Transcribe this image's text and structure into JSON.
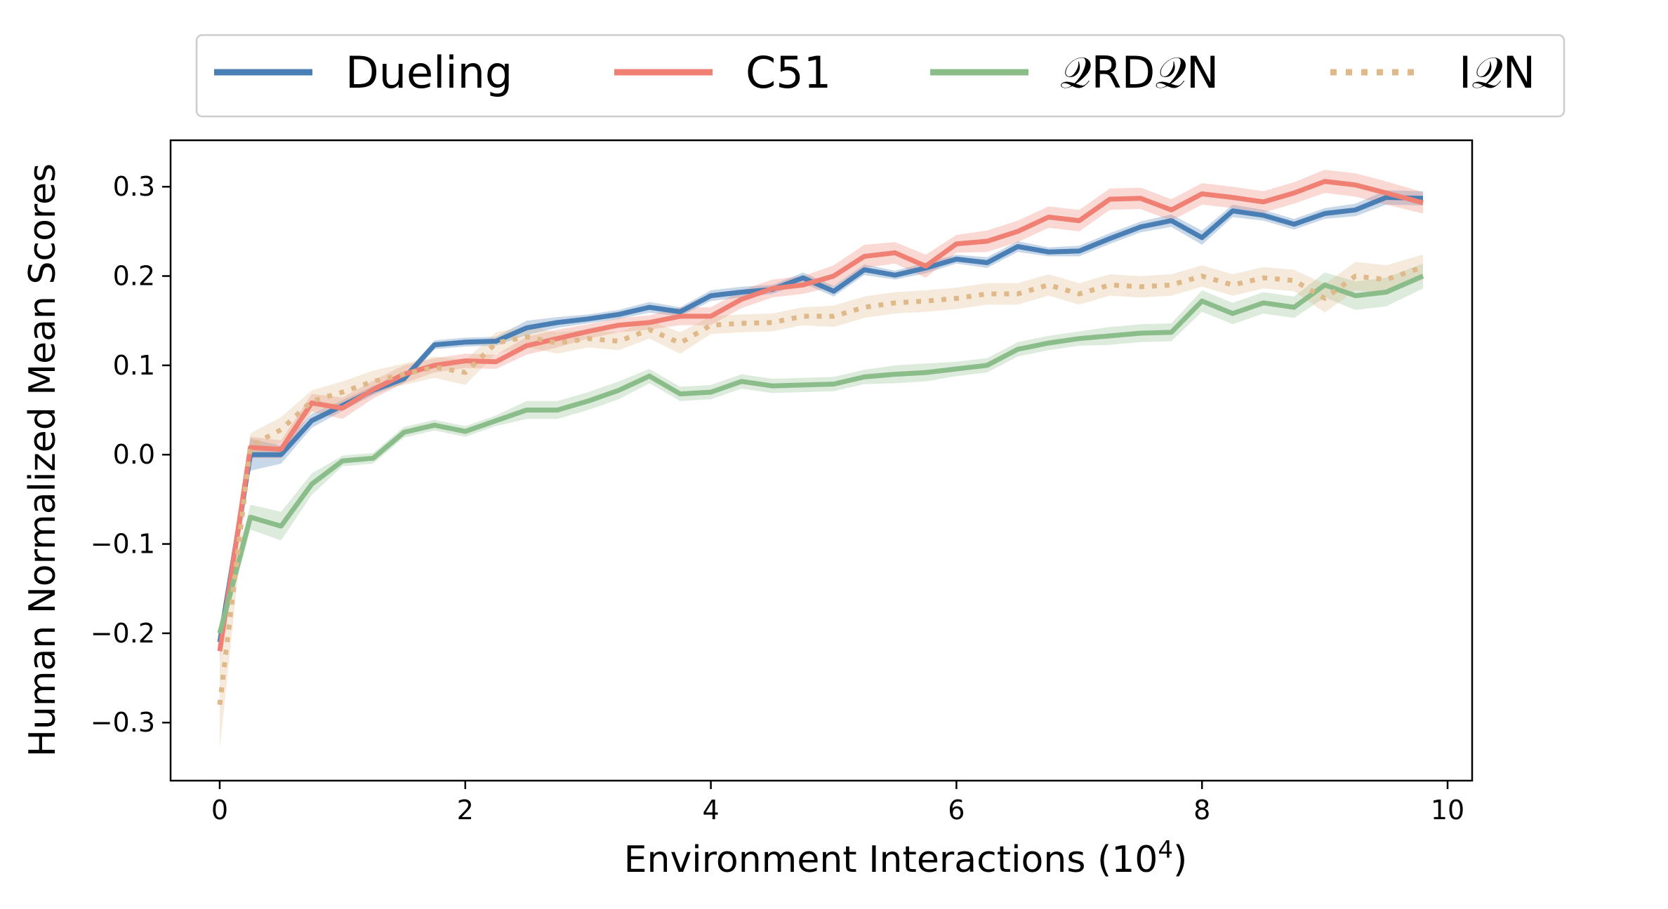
{
  "chart_data": {
    "type": "line",
    "xlabel": "Environment Interactions (10",
    "xlabel_exponent": "4",
    "xlabel_close": ")",
    "ylabel": "Human Normalized Mean Scores",
    "xlim": [
      -0.4,
      10.2
    ],
    "ylim": [
      -0.365,
      0.352
    ],
    "xticks": [
      0,
      2,
      4,
      6,
      8,
      10
    ],
    "xtick_labels": [
      "0",
      "2",
      "4",
      "6",
      "8",
      "10"
    ],
    "yticks": [
      0.3,
      0.2,
      0.1,
      0.0,
      -0.1,
      -0.2,
      -0.3
    ],
    "ytick_labels": [
      "0.3",
      "0.2",
      "0.1",
      "0.0",
      "−0.1",
      "−0.2",
      "−0.3"
    ],
    "grid": false,
    "legend_position": "top-center",
    "x": [
      0,
      0.25,
      0.5,
      0.75,
      1.0,
      1.25,
      1.5,
      1.75,
      2.0,
      2.25,
      2.5,
      2.75,
      3.0,
      3.25,
      3.5,
      3.75,
      4.0,
      4.25,
      4.5,
      4.75,
      5.0,
      5.25,
      5.5,
      5.75,
      6.0,
      6.25,
      6.5,
      6.75,
      7.0,
      7.25,
      7.5,
      7.75,
      8.0,
      8.25,
      8.5,
      8.75,
      9.0,
      9.25,
      9.5,
      9.8
    ],
    "series": [
      {
        "name": "Dueling",
        "color": "#4a7fb5",
        "dashed": false,
        "values": [
          -0.21,
          0.0,
          0.0,
          0.038,
          0.055,
          0.072,
          0.085,
          0.123,
          0.126,
          0.127,
          0.142,
          0.148,
          0.152,
          0.157,
          0.165,
          0.16,
          0.178,
          0.182,
          0.185,
          0.198,
          0.183,
          0.207,
          0.201,
          0.209,
          0.219,
          0.215,
          0.233,
          0.227,
          0.228,
          0.242,
          0.255,
          0.262,
          0.243,
          0.273,
          0.268,
          0.258,
          0.27,
          0.274,
          0.288,
          0.287
        ],
        "band": [
          0.01,
          0.018,
          0.01,
          0.008,
          0.006,
          0.005,
          0.005,
          0.005,
          0.005,
          0.005,
          0.008,
          0.006,
          0.005,
          0.005,
          0.006,
          0.005,
          0.006,
          0.006,
          0.005,
          0.006,
          0.006,
          0.006,
          0.005,
          0.006,
          0.005,
          0.006,
          0.006,
          0.005,
          0.006,
          0.006,
          0.006,
          0.007,
          0.008,
          0.007,
          0.006,
          0.006,
          0.006,
          0.007,
          0.008,
          0.008
        ]
      },
      {
        "name": "C51",
        "color": "#f08073",
        "dashed": false,
        "values": [
          -0.22,
          0.008,
          0.006,
          0.058,
          0.052,
          0.073,
          0.09,
          0.1,
          0.105,
          0.104,
          0.122,
          0.13,
          0.138,
          0.145,
          0.148,
          0.155,
          0.155,
          0.174,
          0.186,
          0.19,
          0.2,
          0.222,
          0.226,
          0.211,
          0.236,
          0.239,
          0.25,
          0.266,
          0.262,
          0.286,
          0.287,
          0.274,
          0.292,
          0.288,
          0.283,
          0.293,
          0.306,
          0.302,
          0.293,
          0.282
        ],
        "band": [
          0.01,
          0.012,
          0.01,
          0.01,
          0.012,
          0.01,
          0.01,
          0.008,
          0.008,
          0.008,
          0.01,
          0.01,
          0.008,
          0.008,
          0.008,
          0.01,
          0.01,
          0.01,
          0.01,
          0.01,
          0.012,
          0.013,
          0.012,
          0.013,
          0.01,
          0.012,
          0.012,
          0.012,
          0.012,
          0.012,
          0.012,
          0.012,
          0.012,
          0.012,
          0.012,
          0.012,
          0.013,
          0.013,
          0.013,
          0.012
        ]
      },
      {
        "name": "𝒬RD𝒬N",
        "color": "#8bbd8b",
        "dashed": false,
        "values": [
          -0.2,
          -0.07,
          -0.08,
          -0.033,
          -0.007,
          -0.004,
          0.025,
          0.033,
          0.026,
          0.038,
          0.05,
          0.05,
          0.06,
          0.072,
          0.088,
          0.068,
          0.07,
          0.082,
          0.077,
          0.078,
          0.079,
          0.087,
          0.09,
          0.092,
          0.096,
          0.1,
          0.118,
          0.125,
          0.13,
          0.133,
          0.136,
          0.137,
          0.172,
          0.158,
          0.17,
          0.165,
          0.19,
          0.178,
          0.182,
          0.2
        ],
        "band": [
          0.012,
          0.014,
          0.016,
          0.012,
          0.006,
          0.006,
          0.006,
          0.006,
          0.006,
          0.006,
          0.01,
          0.01,
          0.01,
          0.01,
          0.008,
          0.008,
          0.008,
          0.008,
          0.008,
          0.008,
          0.008,
          0.008,
          0.01,
          0.01,
          0.008,
          0.008,
          0.008,
          0.008,
          0.008,
          0.01,
          0.01,
          0.01,
          0.012,
          0.012,
          0.012,
          0.012,
          0.014,
          0.016,
          0.016,
          0.014
        ]
      },
      {
        "name": "I𝒬N",
        "color": "#dfb98a",
        "dashed": true,
        "values": [
          -0.28,
          0.01,
          0.028,
          0.06,
          0.07,
          0.082,
          0.09,
          0.098,
          0.092,
          0.125,
          0.132,
          0.125,
          0.13,
          0.127,
          0.14,
          0.125,
          0.145,
          0.147,
          0.148,
          0.155,
          0.155,
          0.165,
          0.17,
          0.172,
          0.175,
          0.18,
          0.18,
          0.19,
          0.18,
          0.19,
          0.188,
          0.19,
          0.2,
          0.19,
          0.198,
          0.195,
          0.175,
          0.2,
          0.196,
          0.21
        ],
        "band": [
          0.05,
          0.014,
          0.014,
          0.012,
          0.012,
          0.012,
          0.012,
          0.012,
          0.014,
          0.012,
          0.012,
          0.012,
          0.01,
          0.01,
          0.01,
          0.012,
          0.01,
          0.01,
          0.01,
          0.01,
          0.012,
          0.012,
          0.012,
          0.012,
          0.012,
          0.012,
          0.012,
          0.012,
          0.012,
          0.012,
          0.012,
          0.012,
          0.012,
          0.012,
          0.012,
          0.012,
          0.016,
          0.016,
          0.016,
          0.014
        ]
      }
    ]
  }
}
